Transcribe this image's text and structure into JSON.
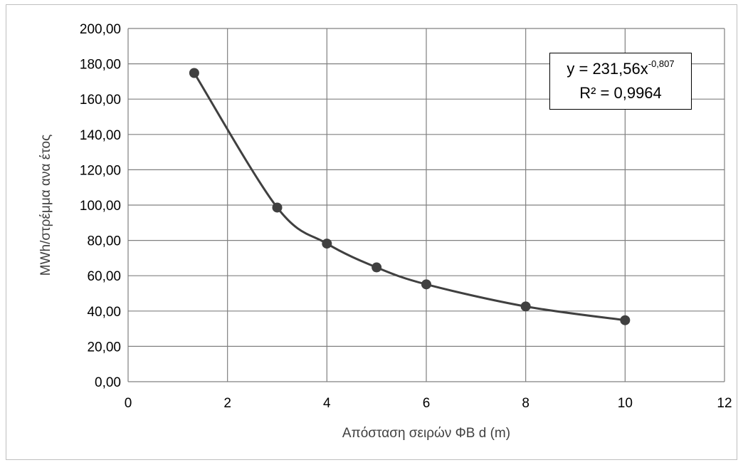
{
  "chart_data": {
    "type": "scatter",
    "xlabel": "Απόσταση σειρών ΦΒ d (m)",
    "ylabel": "MWh/στρέμμα ανα έτος",
    "xlim": [
      0,
      12
    ],
    "ylim": [
      0,
      200
    ],
    "x_ticks": [
      "0",
      "2",
      "4",
      "6",
      "8",
      "10",
      "12"
    ],
    "y_ticks": [
      "0,00",
      "20,00",
      "40,00",
      "60,00",
      "80,00",
      "100,00",
      "120,00",
      "140,00",
      "160,00",
      "180,00",
      "200,00"
    ],
    "grid": true,
    "smoothed_line": true,
    "series": [
      {
        "x": [
          1.33,
          3,
          4,
          5,
          6,
          8,
          10
        ],
        "y": [
          174.8,
          98.6,
          78.2,
          64.7,
          55.1,
          42.6,
          34.8
        ]
      }
    ],
    "trendline": {
      "equation_prefix": "y = 231,56x",
      "equation_exponent": "-0,807",
      "r_squared": "R² = 0,9964"
    },
    "colors": {
      "line": "#404040",
      "marker": "#404040",
      "grid": "#808080"
    }
  }
}
